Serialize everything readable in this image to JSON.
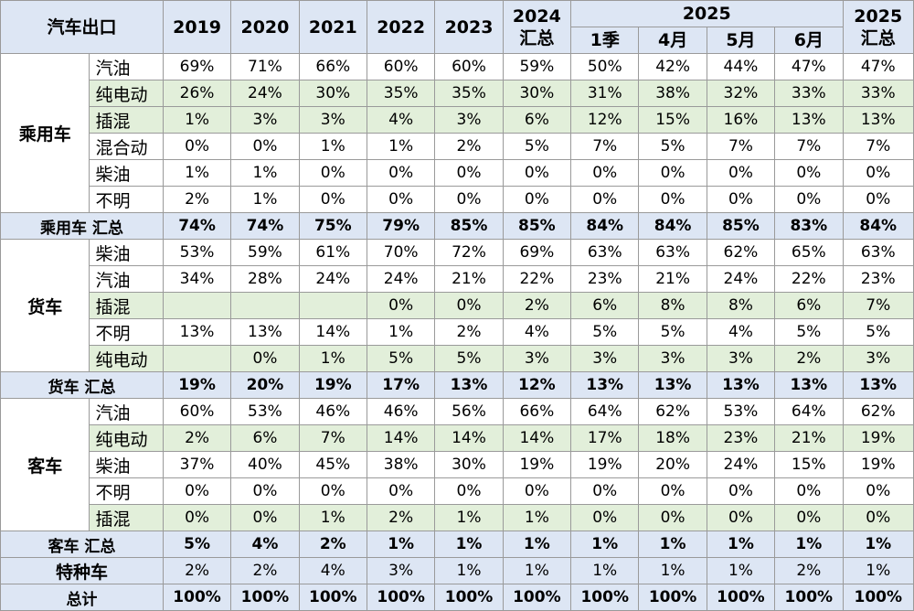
{
  "header": {
    "corner": "汽车出口",
    "years": [
      "2019",
      "2020",
      "2021",
      "2022",
      "2023"
    ],
    "y2024": [
      "2024",
      "汇总"
    ],
    "y2025_group": "2025",
    "months": [
      "1季",
      "4月",
      "5月",
      "6月"
    ],
    "y2025_total": [
      "2025",
      "汇总"
    ]
  },
  "groups": [
    {
      "name": "乘用车",
      "rows": [
        {
          "label": "汽油",
          "shade": "white",
          "values": [
            "69%",
            "71%",
            "66%",
            "60%",
            "60%",
            "59%",
            "50%",
            "42%",
            "44%",
            "47%",
            "47%"
          ]
        },
        {
          "label": "纯电动",
          "shade": "green",
          "values": [
            "26%",
            "24%",
            "30%",
            "35%",
            "35%",
            "30%",
            "31%",
            "38%",
            "32%",
            "33%",
            "33%"
          ]
        },
        {
          "label": "插混",
          "shade": "green",
          "values": [
            "1%",
            "3%",
            "3%",
            "4%",
            "3%",
            "6%",
            "12%",
            "15%",
            "16%",
            "13%",
            "13%"
          ]
        },
        {
          "label": "混合动",
          "shade": "white",
          "values": [
            "0%",
            "0%",
            "1%",
            "1%",
            "2%",
            "5%",
            "7%",
            "5%",
            "7%",
            "7%",
            "7%"
          ]
        },
        {
          "label": "柴油",
          "shade": "white",
          "values": [
            "1%",
            "1%",
            "0%",
            "0%",
            "0%",
            "0%",
            "0%",
            "0%",
            "0%",
            "0%",
            "0%"
          ]
        },
        {
          "label": "不明",
          "shade": "white",
          "values": [
            "2%",
            "1%",
            "0%",
            "0%",
            "0%",
            "0%",
            "0%",
            "0%",
            "0%",
            "0%",
            "0%"
          ]
        }
      ],
      "total": {
        "label": "乘用车 汇总",
        "values": [
          "74%",
          "74%",
          "75%",
          "79%",
          "85%",
          "85%",
          "84%",
          "84%",
          "85%",
          "83%",
          "84%"
        ]
      }
    },
    {
      "name": "货车",
      "rows": [
        {
          "label": "柴油",
          "shade": "white",
          "values": [
            "53%",
            "59%",
            "61%",
            "70%",
            "72%",
            "69%",
            "63%",
            "63%",
            "62%",
            "65%",
            "63%"
          ]
        },
        {
          "label": "汽油",
          "shade": "white",
          "values": [
            "34%",
            "28%",
            "24%",
            "24%",
            "21%",
            "22%",
            "23%",
            "21%",
            "24%",
            "22%",
            "23%"
          ]
        },
        {
          "label": "插混",
          "shade": "green",
          "values": [
            "",
            "",
            "",
            "0%",
            "0%",
            "2%",
            "6%",
            "8%",
            "8%",
            "6%",
            "7%"
          ]
        },
        {
          "label": "不明",
          "shade": "white",
          "values": [
            "13%",
            "13%",
            "14%",
            "1%",
            "2%",
            "4%",
            "5%",
            "5%",
            "4%",
            "5%",
            "5%"
          ]
        },
        {
          "label": "纯电动",
          "shade": "green",
          "values": [
            "",
            "0%",
            "1%",
            "5%",
            "5%",
            "3%",
            "3%",
            "3%",
            "3%",
            "2%",
            "3%"
          ]
        }
      ],
      "total": {
        "label": "货车 汇总",
        "values": [
          "19%",
          "20%",
          "19%",
          "17%",
          "13%",
          "12%",
          "13%",
          "13%",
          "13%",
          "13%",
          "13%"
        ]
      }
    },
    {
      "name": "客车",
      "rows": [
        {
          "label": "汽油",
          "shade": "white",
          "values": [
            "60%",
            "53%",
            "46%",
            "46%",
            "56%",
            "66%",
            "64%",
            "62%",
            "53%",
            "64%",
            "62%"
          ]
        },
        {
          "label": "纯电动",
          "shade": "green",
          "values": [
            "2%",
            "6%",
            "7%",
            "14%",
            "14%",
            "14%",
            "17%",
            "18%",
            "23%",
            "21%",
            "19%"
          ]
        },
        {
          "label": "柴油",
          "shade": "white",
          "values": [
            "37%",
            "40%",
            "45%",
            "38%",
            "30%",
            "19%",
            "19%",
            "20%",
            "24%",
            "15%",
            "19%"
          ]
        },
        {
          "label": "不明",
          "shade": "white",
          "values": [
            "0%",
            "0%",
            "0%",
            "0%",
            "0%",
            "0%",
            "0%",
            "0%",
            "0%",
            "0%",
            "0%"
          ]
        },
        {
          "label": "插混",
          "shade": "green",
          "values": [
            "0%",
            "0%",
            "1%",
            "2%",
            "1%",
            "1%",
            "0%",
            "0%",
            "0%",
            "0%",
            "0%"
          ]
        }
      ],
      "total": {
        "label": "客车 汇总",
        "values": [
          "5%",
          "4%",
          "2%",
          "1%",
          "1%",
          "1%",
          "1%",
          "1%",
          "1%",
          "1%",
          "1%"
        ]
      }
    }
  ],
  "special": {
    "label": "特种车",
    "values": [
      "2%",
      "2%",
      "4%",
      "3%",
      "1%",
      "1%",
      "1%",
      "1%",
      "1%",
      "2%",
      "1%"
    ]
  },
  "grand_total": {
    "label": "总计",
    "values": [
      "100%",
      "100%",
      "100%",
      "100%",
      "100%",
      "100%",
      "100%",
      "100%",
      "100%",
      "100%",
      "100%"
    ]
  }
}
